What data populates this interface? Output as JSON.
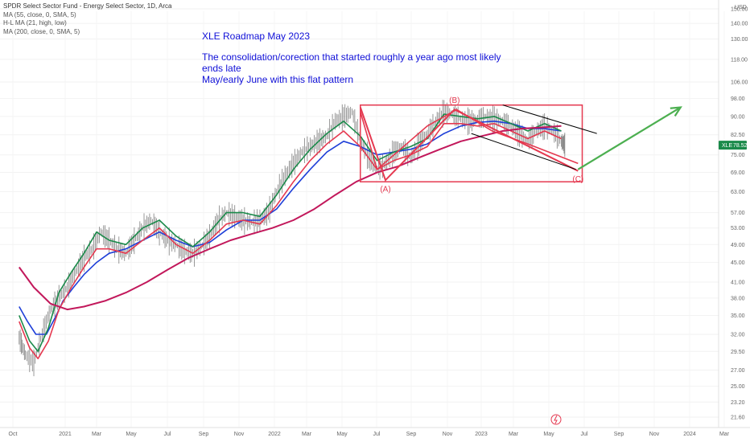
{
  "legend": {
    "title": "SPDR Select Sector Fund - Energy Select Sector, 1D, Arca",
    "ma55": "MA (55, close, 0, SMA, 5)",
    "hl_ma": "H-L MA (21, high, low)",
    "ma200": "MA (200, close, 0, SMA, 5)"
  },
  "note": {
    "title": "XLE Roadmap May 2023",
    "line1": "The consolidation/corection that started roughly a year ago most likely ends late",
    "line2": "May/early June with this flat pattern"
  },
  "price_tag": {
    "symbol": "XLE",
    "value": "78.52"
  },
  "colors": {
    "ma55": "#1e3fd8",
    "hl_ma_upper": "#1a8a4a",
    "hl_ma_lower": "#e53950",
    "ma200": "#c2185b",
    "annotation_red": "#e53950",
    "projection_green": "#4caf50",
    "price_bars": "#555555"
  },
  "chart_data": {
    "type": "line",
    "title": "",
    "xlabel": "",
    "ylabel": "",
    "currency": "USD",
    "x_ticks": [
      "Oct",
      "2021",
      "Mar",
      "May",
      "Jul",
      "Sep",
      "Nov",
      "2022",
      "Mar",
      "May",
      "Jul",
      "Sep",
      "Nov",
      "2023",
      "Mar",
      "May",
      "Jul",
      "Sep",
      "Nov",
      "2024",
      "Mar"
    ],
    "y_ticks": [
      "150.00",
      "140.00",
      "130.00",
      "118.00",
      "106.00",
      "98.00",
      "90.00",
      "82.50",
      "75.00",
      "69.00",
      "63.00",
      "57.00",
      "53.00",
      "49.00",
      "45.00",
      "41.00",
      "38.00",
      "35.00",
      "32.00",
      "29.50",
      "27.00",
      "25.00",
      "23.20",
      "21.60"
    ],
    "y_scale": "log",
    "series": [
      {
        "name": "XLE",
        "points": [
          [
            2020.79,
            31.5
          ],
          [
            2020.82,
            29.0
          ],
          [
            2020.86,
            28.0
          ],
          [
            2020.9,
            32.0
          ],
          [
            2020.94,
            36.0
          ],
          [
            2020.98,
            38.0
          ],
          [
            2021.02,
            40.0
          ],
          [
            2021.06,
            43.0
          ],
          [
            2021.1,
            46.0
          ],
          [
            2021.14,
            48.0
          ],
          [
            2021.18,
            52.0
          ],
          [
            2021.22,
            50.0
          ],
          [
            2021.26,
            48.0
          ],
          [
            2021.3,
            47.0
          ],
          [
            2021.34,
            50.0
          ],
          [
            2021.38,
            53.0
          ],
          [
            2021.42,
            55.0
          ],
          [
            2021.46,
            52.0
          ],
          [
            2021.5,
            50.0
          ],
          [
            2021.54,
            49.0
          ],
          [
            2021.58,
            47.5
          ],
          [
            2021.62,
            47.0
          ],
          [
            2021.66,
            48.5
          ],
          [
            2021.7,
            51.0
          ],
          [
            2021.74,
            55.0
          ],
          [
            2021.78,
            57.0
          ],
          [
            2021.82,
            56.0
          ],
          [
            2021.86,
            55.0
          ],
          [
            2021.9,
            54.5
          ],
          [
            2021.94,
            55.0
          ],
          [
            2021.98,
            57.0
          ],
          [
            2022.02,
            63.0
          ],
          [
            2022.06,
            68.0
          ],
          [
            2022.1,
            72.0
          ],
          [
            2022.14,
            76.0
          ],
          [
            2022.18,
            78.0
          ],
          [
            2022.22,
            80.0
          ],
          [
            2022.26,
            82.0
          ],
          [
            2022.3,
            88.0
          ],
          [
            2022.34,
            90.0
          ],
          [
            2022.38,
            92.0
          ],
          [
            2022.42,
            80.0
          ],
          [
            2022.46,
            74.0
          ],
          [
            2022.5,
            70.0
          ],
          [
            2022.54,
            72.0
          ],
          [
            2022.58,
            76.0
          ],
          [
            2022.62,
            78.0
          ],
          [
            2022.66,
            74.0
          ],
          [
            2022.7,
            79.0
          ],
          [
            2022.74,
            83.0
          ],
          [
            2022.78,
            88.0
          ],
          [
            2022.82,
            92.0
          ],
          [
            2022.86,
            91.0
          ],
          [
            2022.9,
            89.0
          ],
          [
            2022.94,
            88.0
          ],
          [
            2022.98,
            89.0
          ],
          [
            2023.02,
            90.0
          ],
          [
            2023.06,
            89.0
          ],
          [
            2023.1,
            88.0
          ],
          [
            2023.14,
            86.0
          ],
          [
            2023.18,
            83.0
          ],
          [
            2023.22,
            80.0
          ],
          [
            2023.26,
            84.0
          ],
          [
            2023.3,
            86.0
          ],
          [
            2023.34,
            84.0
          ],
          [
            2023.38,
            80.0
          ],
          [
            2023.4,
            78.52
          ]
        ]
      },
      {
        "name": "MA (55, close, 0, SMA, 5)",
        "points": [
          [
            2020.79,
            36.5
          ],
          [
            2020.83,
            34.0
          ],
          [
            2020.87,
            32.0
          ],
          [
            2020.92,
            32.0
          ],
          [
            2020.96,
            34.5
          ],
          [
            2021.0,
            37.5
          ],
          [
            2021.05,
            40.0
          ],
          [
            2021.1,
            42.5
          ],
          [
            2021.16,
            45.0
          ],
          [
            2021.22,
            47.0
          ],
          [
            2021.3,
            48.0
          ],
          [
            2021.38,
            50.0
          ],
          [
            2021.46,
            52.0
          ],
          [
            2021.54,
            50.0
          ],
          [
            2021.62,
            48.5
          ],
          [
            2021.7,
            49.5
          ],
          [
            2021.78,
            52.5
          ],
          [
            2021.86,
            55.0
          ],
          [
            2021.94,
            55.0
          ],
          [
            2022.02,
            58.0
          ],
          [
            2022.1,
            64.0
          ],
          [
            2022.18,
            70.0
          ],
          [
            2022.26,
            76.0
          ],
          [
            2022.34,
            80.0
          ],
          [
            2022.42,
            78.0
          ],
          [
            2022.5,
            75.0
          ],
          [
            2022.58,
            76.0
          ],
          [
            2022.66,
            77.0
          ],
          [
            2022.74,
            79.0
          ],
          [
            2022.82,
            83.0
          ],
          [
            2022.9,
            86.0
          ],
          [
            2022.98,
            87.5
          ],
          [
            2023.06,
            88.0
          ],
          [
            2023.14,
            87.0
          ],
          [
            2023.22,
            85.0
          ],
          [
            2023.3,
            85.0
          ],
          [
            2023.38,
            84.0
          ]
        ]
      },
      {
        "name": "H-L MA (21, high, low) upper",
        "points": [
          [
            2020.79,
            35.0
          ],
          [
            2020.84,
            31.0
          ],
          [
            2020.88,
            29.5
          ],
          [
            2020.93,
            33.0
          ],
          [
            2020.98,
            39.0
          ],
          [
            2021.04,
            43.0
          ],
          [
            2021.1,
            47.0
          ],
          [
            2021.16,
            52.0
          ],
          [
            2021.22,
            50.0
          ],
          [
            2021.3,
            49.0
          ],
          [
            2021.38,
            53.0
          ],
          [
            2021.46,
            55.0
          ],
          [
            2021.54,
            51.0
          ],
          [
            2021.62,
            48.5
          ],
          [
            2021.7,
            52.0
          ],
          [
            2021.78,
            57.0
          ],
          [
            2021.86,
            57.0
          ],
          [
            2021.94,
            56.0
          ],
          [
            2022.02,
            62.0
          ],
          [
            2022.1,
            70.0
          ],
          [
            2022.18,
            77.0
          ],
          [
            2022.26,
            83.0
          ],
          [
            2022.34,
            88.0
          ],
          [
            2022.42,
            82.0
          ],
          [
            2022.5,
            73.0
          ],
          [
            2022.58,
            76.0
          ],
          [
            2022.66,
            78.0
          ],
          [
            2022.74,
            81.0
          ],
          [
            2022.82,
            91.0
          ],
          [
            2022.9,
            90.0
          ],
          [
            2022.98,
            89.0
          ],
          [
            2023.06,
            90.0
          ],
          [
            2023.14,
            87.0
          ],
          [
            2023.22,
            84.0
          ],
          [
            2023.3,
            87.0
          ],
          [
            2023.38,
            84.0
          ]
        ]
      },
      {
        "name": "H-L MA (21, high, low) lower",
        "points": [
          [
            2020.79,
            34.0
          ],
          [
            2020.84,
            30.0
          ],
          [
            2020.88,
            28.5
          ],
          [
            2020.93,
            31.0
          ],
          [
            2020.98,
            36.0
          ],
          [
            2021.04,
            40.0
          ],
          [
            2021.1,
            44.0
          ],
          [
            2021.16,
            48.0
          ],
          [
            2021.22,
            48.0
          ],
          [
            2021.3,
            47.0
          ],
          [
            2021.38,
            50.0
          ],
          [
            2021.46,
            53.0
          ],
          [
            2021.54,
            49.0
          ],
          [
            2021.62,
            47.0
          ],
          [
            2021.7,
            50.0
          ],
          [
            2021.78,
            54.0
          ],
          [
            2021.86,
            55.0
          ],
          [
            2021.94,
            54.0
          ],
          [
            2022.02,
            59.0
          ],
          [
            2022.1,
            66.0
          ],
          [
            2022.18,
            73.0
          ],
          [
            2022.26,
            79.0
          ],
          [
            2022.34,
            84.0
          ],
          [
            2022.42,
            78.0
          ],
          [
            2022.5,
            70.0
          ],
          [
            2022.58,
            73.0
          ],
          [
            2022.66,
            75.0
          ],
          [
            2022.74,
            78.0
          ],
          [
            2022.82,
            87.0
          ],
          [
            2022.9,
            87.0
          ],
          [
            2022.98,
            86.0
          ],
          [
            2023.06,
            87.0
          ],
          [
            2023.14,
            84.0
          ],
          [
            2023.22,
            81.0
          ],
          [
            2023.3,
            84.0
          ],
          [
            2023.38,
            81.0
          ]
        ]
      },
      {
        "name": "MA (200, close, 0, SMA, 5)",
        "points": [
          [
            2020.79,
            44.0
          ],
          [
            2020.86,
            40.0
          ],
          [
            2020.94,
            37.0
          ],
          [
            2021.02,
            36.0
          ],
          [
            2021.1,
            36.5
          ],
          [
            2021.2,
            37.5
          ],
          [
            2021.3,
            39.0
          ],
          [
            2021.4,
            41.0
          ],
          [
            2021.5,
            43.5
          ],
          [
            2021.6,
            46.0
          ],
          [
            2021.7,
            48.0
          ],
          [
            2021.8,
            50.0
          ],
          [
            2021.9,
            51.5
          ],
          [
            2022.0,
            53.0
          ],
          [
            2022.1,
            55.0
          ],
          [
            2022.2,
            58.0
          ],
          [
            2022.3,
            62.0
          ],
          [
            2022.4,
            66.0
          ],
          [
            2022.5,
            69.0
          ],
          [
            2022.6,
            71.0
          ],
          [
            2022.7,
            74.0
          ],
          [
            2022.8,
            77.0
          ],
          [
            2022.9,
            80.0
          ],
          [
            2023.0,
            82.0
          ],
          [
            2023.1,
            84.0
          ],
          [
            2023.2,
            85.0
          ],
          [
            2023.3,
            85.5
          ],
          [
            2023.38,
            86.0
          ]
        ]
      }
    ],
    "annotations": {
      "wave_labels": [
        {
          "text": "(A)",
          "x": 2022.54,
          "y": 63.0
        },
        {
          "text": "(B)",
          "x": 2022.87,
          "y": 96.0
        },
        {
          "text": "(C)",
          "x": 2023.46,
          "y": 66.0
        }
      ],
      "wave_path": [
        [
          2022.42,
          94.0
        ],
        [
          2022.54,
          66.5
        ],
        [
          2022.87,
          93.0
        ],
        [
          2023.46,
          69.5
        ]
      ],
      "inner_path": [
        [
          2022.42,
          92.0
        ],
        [
          2022.5,
          70.0
        ],
        [
          2022.74,
          86.0
        ],
        [
          2022.88,
          93.0
        ],
        [
          2023.05,
          84.0
        ],
        [
          2023.22,
          79.0
        ],
        [
          2023.46,
          72.0
        ]
      ],
      "box": {
        "x0": 2022.42,
        "x1": 2023.48,
        "y0": 66.0,
        "y1": 95.0
      },
      "channel": {
        "upper": [
          [
            2023.1,
            95.0
          ],
          [
            2023.55,
            83.0
          ]
        ],
        "lower": [
          [
            2022.95,
            83.0
          ],
          [
            2023.45,
            70.0
          ]
        ]
      },
      "projection": [
        [
          2023.46,
          70.0
        ],
        [
          2023.95,
          94.0
        ]
      ]
    }
  }
}
